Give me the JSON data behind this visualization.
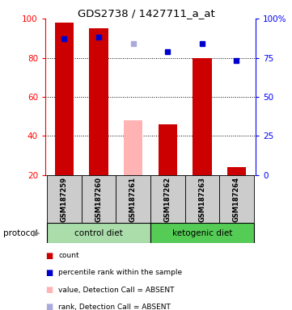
{
  "title": "GDS2738 / 1427711_a_at",
  "samples": [
    "GSM187259",
    "GSM187260",
    "GSM187261",
    "GSM187262",
    "GSM187263",
    "GSM187264"
  ],
  "bar_heights": [
    98,
    95,
    48,
    46,
    80,
    24
  ],
  "bar_colors": [
    "#cc0000",
    "#cc0000",
    "#ffb3b3",
    "#cc0000",
    "#cc0000",
    "#cc0000"
  ],
  "blue_markers": [
    87,
    88,
    84,
    79,
    84,
    73
  ],
  "blue_marker_colors": [
    "#0000cc",
    "#0000cc",
    "#aaaadd",
    "#0000cc",
    "#0000cc",
    "#0000cc"
  ],
  "ylim_left": [
    20,
    100
  ],
  "ylim_right": [
    0,
    100
  ],
  "yticks_left": [
    20,
    40,
    60,
    80,
    100
  ],
  "ytick_labels_left": [
    "20",
    "40",
    "60",
    "80",
    "100"
  ],
  "yticks_right": [
    0,
    25,
    50,
    75,
    100
  ],
  "ytick_labels_right": [
    "0",
    "25",
    "50",
    "75",
    "100%"
  ],
  "protocol_groups": [
    {
      "label": "control diet",
      "start": 0,
      "end": 3,
      "color": "#aaddaa"
    },
    {
      "label": "ketogenic diet",
      "start": 3,
      "end": 6,
      "color": "#55cc55"
    }
  ],
  "protocol_label": "protocol",
  "bar_bottom": 20,
  "legend_items": [
    {
      "color": "#cc0000",
      "label": "count"
    },
    {
      "color": "#0000cc",
      "label": "percentile rank within the sample"
    },
    {
      "color": "#ffb3b3",
      "label": "value, Detection Call = ABSENT"
    },
    {
      "color": "#aaaadd",
      "label": "rank, Detection Call = ABSENT"
    }
  ],
  "fig_width": 3.61,
  "fig_height": 3.84,
  "dpi": 100
}
